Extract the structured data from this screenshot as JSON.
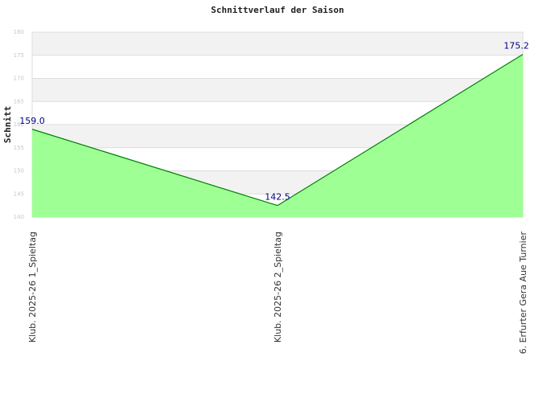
{
  "chart_data": {
    "type": "area",
    "title": "Schnittverlauf der Saison",
    "y_label": "Schnitt",
    "categories": [
      "Klub. 2025-26  1_Spieltag",
      "Klub. 2025-26  2_Spieltag",
      "6. Erfurter Gera Aue Turnier"
    ],
    "values": [
      159.0,
      142.5,
      175.2
    ],
    "value_labels": [
      "159.0",
      "142.5",
      "175.2"
    ],
    "color": "#008000",
    "fill": "#99ff8f",
    "ylim": [
      140,
      180
    ],
    "yticks": [
      140,
      145,
      150,
      155,
      160,
      165,
      170,
      175,
      180
    ],
    "grid": true
  }
}
